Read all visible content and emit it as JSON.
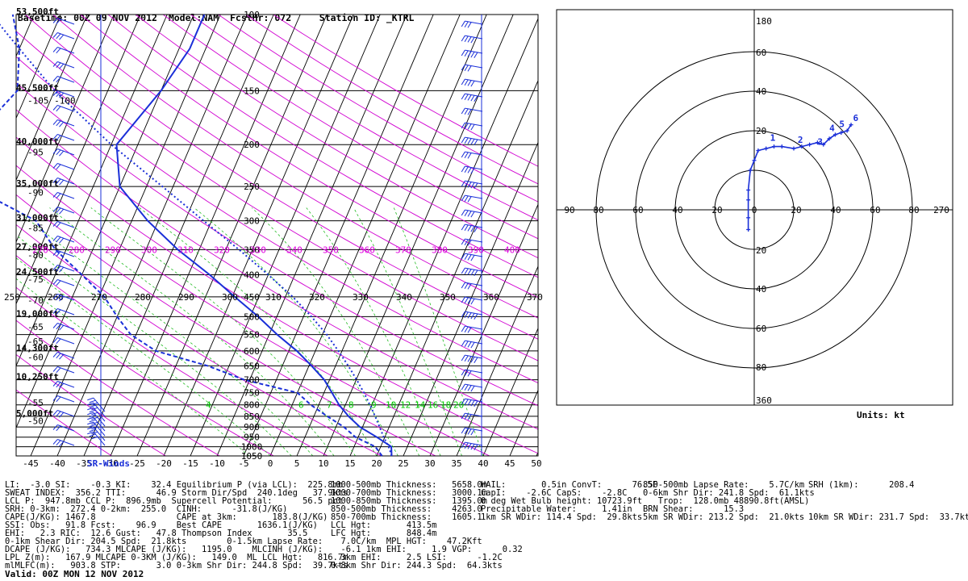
{
  "header": {
    "basetime": "Basetime: 00Z 09 NOV 2012",
    "model": "Model:NAM",
    "fcsthr": "FcstHr: 072",
    "station": "Station ID: _KTRL"
  },
  "skewt": {
    "temp_ticks": [
      "-45",
      "-40",
      "-35",
      "-30",
      "-25",
      "-20",
      "-15",
      "-10",
      "-5",
      "0",
      "5",
      "10",
      "15",
      "20",
      "25",
      "30",
      "35",
      "40",
      "45",
      "50"
    ],
    "pressure_levels": [
      {
        "p": 100,
        "label": "100"
      },
      {
        "p": 150,
        "label": "150"
      },
      {
        "p": 200,
        "label": "200"
      },
      {
        "p": 250,
        "label": "250"
      },
      {
        "p": 300,
        "label": "300"
      },
      {
        "p": 350,
        "label": "350"
      },
      {
        "p": 400,
        "label": "400"
      },
      {
        "p": 450,
        "label": "450"
      },
      {
        "p": 500,
        "label": "500"
      },
      {
        "p": 550,
        "label": "550"
      },
      {
        "p": 600,
        "label": "600"
      },
      {
        "p": 650,
        "label": "650"
      },
      {
        "p": 700,
        "label": "700"
      },
      {
        "p": 750,
        "label": "750"
      },
      {
        "p": 800,
        "label": "800"
      },
      {
        "p": 850,
        "label": "850"
      },
      {
        "p": 900,
        "label": "900"
      },
      {
        "p": 950,
        "label": "950"
      },
      {
        "p": 1000,
        "label": "1000"
      },
      {
        "p": 1050,
        "label": "1050"
      }
    ],
    "height_labels": [
      {
        "p": 100,
        "label": "53,500ft"
      },
      {
        "p": 150,
        "label": "45,500ft"
      },
      {
        "p": 200,
        "label": "40,000ft"
      },
      {
        "p": 250,
        "label": "35,000ft"
      },
      {
        "p": 300,
        "label": "31,000ft"
      },
      {
        "p": 350,
        "label": "27,000ft"
      },
      {
        "p": 400,
        "label": "24,500ft"
      },
      {
        "p": 500,
        "label": "19,000ft"
      },
      {
        "p": 600,
        "label": "14,300ft"
      },
      {
        "p": 700,
        "label": "10,250ft"
      },
      {
        "p": 850,
        "label": "5,000ft"
      }
    ],
    "left_temp_labels": [
      {
        "p": 158,
        "label": "-105 -100"
      },
      {
        "p": 208,
        "label": "-95"
      },
      {
        "p": 258,
        "label": "-90"
      },
      {
        "p": 312,
        "label": "-85"
      },
      {
        "p": 360,
        "label": "-80"
      },
      {
        "p": 410,
        "label": "-75"
      },
      {
        "p": 458,
        "label": "-70"
      },
      {
        "p": 528,
        "label": "-65"
      },
      {
        "p": 620,
        "label": "-60"
      },
      {
        "p": 570,
        "label": "-65"
      },
      {
        "p": 790,
        "label": "-55"
      },
      {
        "p": 870,
        "label": "-50"
      }
    ],
    "theta_450": [
      "250",
      "260",
      "270",
      "280",
      "290",
      "300",
      "310",
      "320",
      "330",
      "340",
      "350",
      "360",
      "370"
    ],
    "theta_350": [
      "270",
      "280",
      "290",
      "300",
      "310",
      "320",
      "330",
      "340",
      "350",
      "360",
      "370",
      "380",
      "390",
      "400"
    ],
    "theta_e_800": [
      "4",
      "6",
      "7",
      "8",
      "9",
      "10",
      "12",
      "14",
      "16",
      "18",
      "20"
    ],
    "temperature": [
      [
        1050,
        22.8
      ],
      [
        1000,
        22
      ],
      [
        950,
        18.5
      ],
      [
        900,
        14.5
      ],
      [
        850,
        11.5
      ],
      [
        800,
        8.8
      ],
      [
        750,
        6.5
      ],
      [
        700,
        4.0
      ],
      [
        650,
        0.5
      ],
      [
        600,
        -3.5
      ],
      [
        550,
        -8.5
      ],
      [
        500,
        -13.5
      ],
      [
        450,
        -19.5
      ],
      [
        400,
        -26
      ],
      [
        350,
        -34
      ],
      [
        300,
        -42
      ],
      [
        250,
        -50
      ],
      [
        200,
        -54
      ],
      [
        150,
        -50
      ],
      [
        120,
        -48
      ],
      [
        100,
        -48
      ]
    ],
    "dewpoint": [
      [
        1050,
        21
      ],
      [
        1000,
        19
      ],
      [
        950,
        14.5
      ],
      [
        900,
        11.5
      ],
      [
        850,
        7.5
      ],
      [
        800,
        3.5
      ],
      [
        750,
        0
      ],
      [
        700,
        -11
      ],
      [
        650,
        -19
      ],
      [
        600,
        -30
      ],
      [
        550,
        -36
      ],
      [
        500,
        -40
      ],
      [
        450,
        -44
      ],
      [
        400,
        -50
      ],
      [
        350,
        -57
      ],
      [
        300,
        -63
      ],
      [
        250,
        -78
      ],
      [
        200,
        -82
      ],
      [
        150,
        -77
      ],
      [
        120,
        -80
      ],
      [
        100,
        -84
      ]
    ],
    "parcel": [
      [
        1050,
        22.8
      ],
      [
        1000,
        21.5
      ],
      [
        950,
        19.8
      ],
      [
        900,
        18.2
      ],
      [
        850,
        16.5
      ],
      [
        800,
        14.6
      ],
      [
        750,
        12.5
      ],
      [
        700,
        10.1
      ],
      [
        650,
        7.4
      ],
      [
        600,
        4.3
      ],
      [
        550,
        0.8
      ],
      [
        500,
        -3.5
      ],
      [
        450,
        -8.6
      ],
      [
        400,
        -15
      ],
      [
        350,
        -22.5
      ],
      [
        300,
        -31.5
      ],
      [
        250,
        -42
      ],
      [
        200,
        -55
      ],
      [
        150,
        -70
      ],
      [
        120,
        -80
      ],
      [
        100,
        -88
      ]
    ],
    "annotations": {
      "sr_winds": "SR-Winds"
    }
  },
  "hodograph": {
    "range_labels_vertical": [
      "180",
      "60",
      "40",
      "20",
      "20",
      "40",
      "60",
      "80",
      "360"
    ],
    "range_labels_horizontal": [
      "90",
      "80",
      "60",
      "40",
      "20",
      "0",
      "20",
      "40",
      "60",
      "80",
      "270"
    ],
    "points": [
      [
        -3,
        -10
      ],
      [
        -3,
        -4
      ],
      [
        -3,
        5
      ],
      [
        -3,
        10
      ],
      [
        -2,
        20
      ],
      [
        0,
        25
      ],
      [
        2,
        30
      ],
      [
        6,
        31
      ],
      [
        10,
        32
      ],
      [
        14,
        32
      ],
      [
        20,
        31
      ],
      [
        24,
        32
      ],
      [
        28,
        33
      ],
      [
        32,
        34
      ],
      [
        35,
        33
      ],
      [
        38,
        36
      ],
      [
        41,
        38
      ],
      [
        44,
        39
      ],
      [
        47,
        40
      ],
      [
        49,
        43
      ]
    ],
    "labels": [
      {
        "u": 8,
        "v": 34,
        "text": "1"
      },
      {
        "u": 22,
        "v": 33,
        "text": "2"
      },
      {
        "u": 32,
        "v": 32,
        "text": "3"
      },
      {
        "u": 38,
        "v": 39,
        "text": "4"
      },
      {
        "u": 43,
        "v": 41,
        "text": "5"
      },
      {
        "u": 50,
        "v": 44,
        "text": "6"
      }
    ],
    "units": "Units: kt"
  },
  "indices": {
    "col1": [
      "LI:  -3.0 SI:    -0.3 KI:    32.4 Equilibrium P (via LCL):  225.8mb",
      "SWEAT INDEX:  356.2 TTI:      46.9 Storm Dir/Spd  240.1deg   37.9kts",
      "LCL P:  947.8mb CCL P:  896.9mb  Supercell Potential:      56.5 pct",
      "SRH: 0-3km:  272.4 0-2km:  255.0  CINH:      -31.8(J/KG)",
      "CAPE(J/KG): 1467.8                CAPE at 3km:       183.8(J/KG)",
      "SSI: Obs:   91.8 Fcst:    96.9    Best CAPE       1636.1(J/KG)",
      "EHI:   2.3 RIC:  12.6 Gust:   47.8 Thompson Index       35.5",
      "0-1km Shear Dir: 204.5 Spd:  21.8kts        0-1.5km Lapse Rate:",
      "DCAPE (J/KG):   734.3 MLCAPE (J/KG):   1195.0    MLCINH (J/KG):",
      "LPL Z(m):   167.9 MLCAPE 0-3KM (J/KG):   149.0  ML LCL Hgt:   816.7m",
      "mlMLFC(m):   903.8 STP:       3.0 0-3km Shr Dir: 244.8 Spd:  39.7kts"
    ],
    "col2": [
      "1000-500mb Thickness:   5658.0m",
      "1000-700mb Thickness:   3000.1m",
      "1000-850mb Thickness:   1395.0m",
      "850-500mb Thickness:    4263.0",
      "850-700mb Thickness:    1605.1",
      "LCL Hgt:       413.5m",
      "LFC Hgt:       848.4m",
      "  7.0C/km  MPL HGT:    47.2Kft",
      "  -6.1 1km EHI:     1.9 VGP:      0.32",
      "  3km EHI:     2.5 LSI:      -1.2C",
      "0-8km Shr Dir: 244.3 Spd:  64.3kts"
    ],
    "col3": [
      "HAIL:       0.5in ConvT:      76.5F",
      "CapI:    -2.6C CapS:    -2.8C",
      "0 deg Wet Bulb height: 10723.9ft",
      "Precipitable Water:     1.41in",
      "1km SR WDir: 114.4 Spd:  29.8kts"
    ],
    "col4": [
      "850-500mb Lapse Rate:    5.7C/km",
      "0-6km Shr Dir: 241.8 Spd:  61.1kts",
      "   Trop:  128.0mb 48890.8ft(AMSL)",
      "BRN Shear:      15.3",
      "5km SR WDir: 213.2 Spd:  21.0kts"
    ],
    "col5": [
      "SRH (1km):      208.4",
      "",
      "",
      "",
      "10km SR WDir: 231.7 Spd:  33.7kts"
    ],
    "valid": "Valid: 00Z MON 12 NOV 2012"
  },
  "colors": {
    "temp": "#1a2fd8",
    "dry_adiabat": "#d100d1",
    "moist_adiabat": "#22bb22",
    "iso_label_magenta": "#e000e0",
    "iso_label_green": "#00cc00"
  }
}
